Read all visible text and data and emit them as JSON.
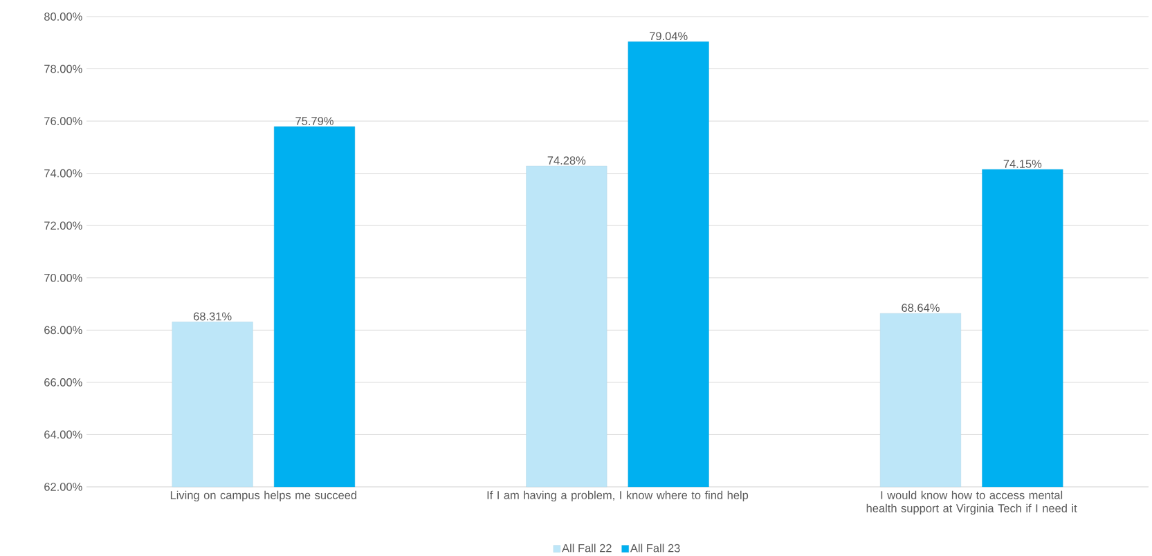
{
  "chart_data": {
    "type": "bar",
    "categories": [
      "Living on campus helps me succeed",
      "If I am having a problem, I know where to find help",
      "I would know how to access mental health support at Virginia Tech if I need it"
    ],
    "series": [
      {
        "name": "All Fall 22",
        "color": "#bde6f8",
        "values": [
          68.31,
          74.28,
          68.64
        ],
        "value_labels": [
          "68.31%",
          "74.28%",
          "68.64%"
        ]
      },
      {
        "name": "All Fall 23",
        "color": "#00b0f0",
        "values": [
          75.79,
          79.04,
          74.15
        ],
        "value_labels": [
          "75.79%",
          "79.04%",
          "74.15%"
        ]
      }
    ],
    "ylim": [
      62,
      80
    ],
    "yticks": [
      {
        "value": 62,
        "label": "62.00%"
      },
      {
        "value": 64,
        "label": "64.00%"
      },
      {
        "value": 66,
        "label": "66.00%"
      },
      {
        "value": 68,
        "label": "68.00%"
      },
      {
        "value": 70,
        "label": "70.00%"
      },
      {
        "value": 72,
        "label": "72.00%"
      },
      {
        "value": 74,
        "label": "74.00%"
      },
      {
        "value": 76,
        "label": "76.00%"
      },
      {
        "value": 78,
        "label": "78.00%"
      },
      {
        "value": 80,
        "label": "80.00%"
      }
    ],
    "grid": "y",
    "legend": "bottom"
  }
}
